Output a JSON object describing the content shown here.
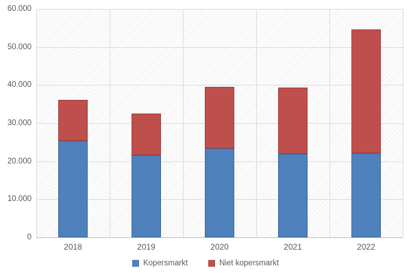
{
  "chart_data": {
    "type": "bar",
    "stacked": true,
    "title": "",
    "xlabel": "",
    "ylabel": "",
    "categories": [
      "2018",
      "2019",
      "2020",
      "2021",
      "2022"
    ],
    "series": [
      {
        "name": "Kopersmarkt",
        "color": "#4f81bd",
        "border_color": "#3d689a",
        "values": [
          25300,
          21600,
          23300,
          21900,
          22100
        ]
      },
      {
        "name": "Niet kopersmarkt",
        "color": "#bf4f4c",
        "border_color": "#a03f3d",
        "values": [
          10700,
          10900,
          16200,
          17400,
          32500
        ]
      }
    ],
    "stack_totals": [
      36000,
      32500,
      39500,
      39300,
      54600
    ],
    "ylim": [
      0,
      60000
    ],
    "ytick_step": 10000,
    "ytick_labels": [
      "0",
      "10.000",
      "20.000",
      "30.000",
      "40.000",
      "50.000",
      "60.000"
    ],
    "grid": true,
    "plot_background": "diagonal-hatch",
    "legend_position": "bottom"
  },
  "colors": {
    "kopersmarkt_blue": "#4f81bd",
    "niet_kopersmarkt_red": "#bf4f4c",
    "gridline": "#dcdcdc",
    "axis_line": "#bfbfbf",
    "tick_label": "#595959"
  },
  "legend": {
    "items": [
      {
        "label": "Kopersmarkt"
      },
      {
        "label": "Niet kopersmarkt"
      }
    ]
  }
}
